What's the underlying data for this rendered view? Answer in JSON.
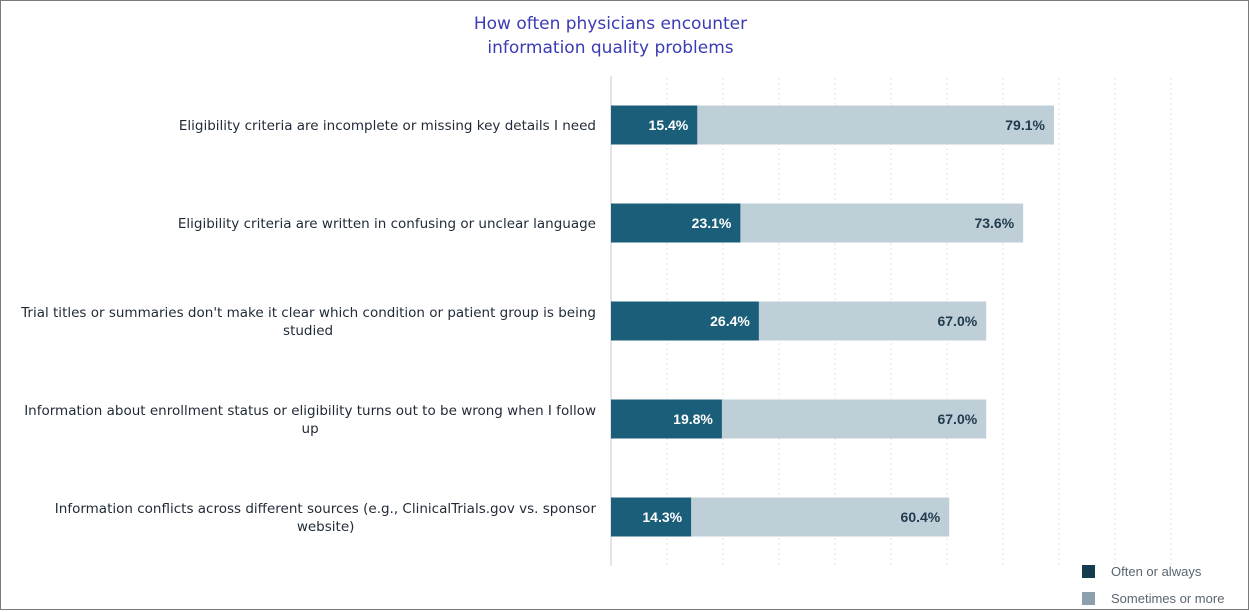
{
  "chart_data": {
    "type": "bar",
    "orientation": "horizontal",
    "layout": "overlapping",
    "title_lines": [
      "How often physicians encounter",
      "information quality problems"
    ],
    "categories": [
      [
        "Eligibility criteria are incomplete or missing key details I need"
      ],
      [
        "Eligibility criteria are written in confusing or unclear language"
      ],
      [
        "Trial titles or summaries don't make it clear which condition or patient group is being",
        "studied"
      ],
      [
        "Information about enrollment status or eligibility turns out to be wrong when I follow",
        "up"
      ],
      [
        "Information conflicts across different sources (e.g., ClinicalTrials.gov vs. sponsor",
        "website)"
      ]
    ],
    "series": [
      {
        "name": "Often or always",
        "values": [
          15.4,
          23.1,
          26.4,
          19.8,
          14.3
        ],
        "labels": [
          "15.4%",
          "23.1%",
          "26.4%",
          "19.8%",
          "14.3%"
        ],
        "color": "#1b5e7a",
        "label_color": "#ffffff"
      },
      {
        "name": "Sometimes or more",
        "values": [
          79.1,
          73.6,
          67.0,
          67.0,
          60.4
        ],
        "labels": [
          "79.1%",
          "73.6%",
          "67.0%",
          "67.0%",
          "60.4%"
        ],
        "color": "#bfcfd8",
        "label_color": "#1f3b4d"
      }
    ],
    "xlim": [
      0,
      100
    ],
    "grid": true,
    "legend_position": "bottom-right",
    "legend_swatch_colors": [
      "#133d4f",
      "#8aa1ad"
    ]
  }
}
